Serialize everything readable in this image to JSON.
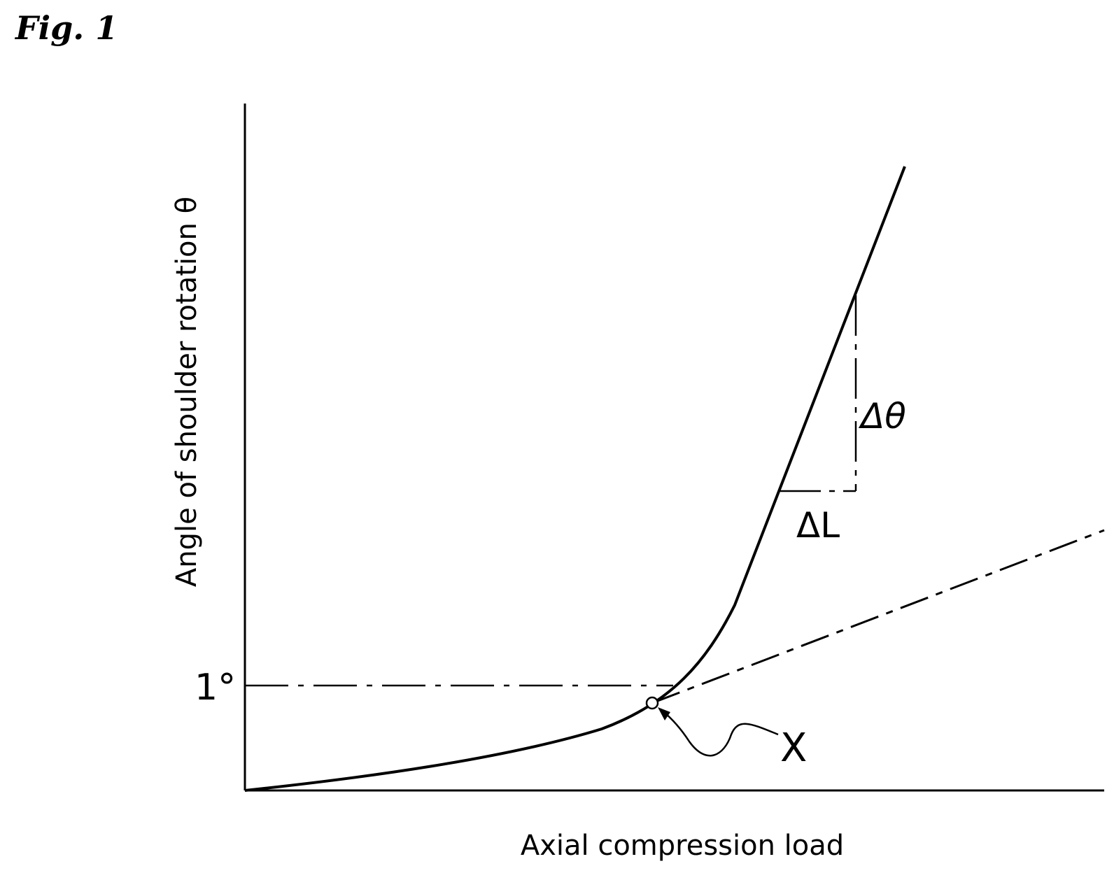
{
  "figure": {
    "label": "Fig. 1"
  },
  "chart_data": {
    "type": "line",
    "title": "",
    "xlabel": "Axial compression load",
    "ylabel": "Angle of shoulder rotation θ",
    "y_tick": "1°",
    "series": [
      {
        "style": "solid",
        "description": "measured curve"
      },
      {
        "style": "dashed",
        "description": "tangent extension from X"
      }
    ],
    "annotations": {
      "delta_theta": "Δθ",
      "delta_l": "ΔL",
      "point_x": "X"
    },
    "colors": {
      "line": "#000000",
      "background": "#ffffff"
    }
  }
}
